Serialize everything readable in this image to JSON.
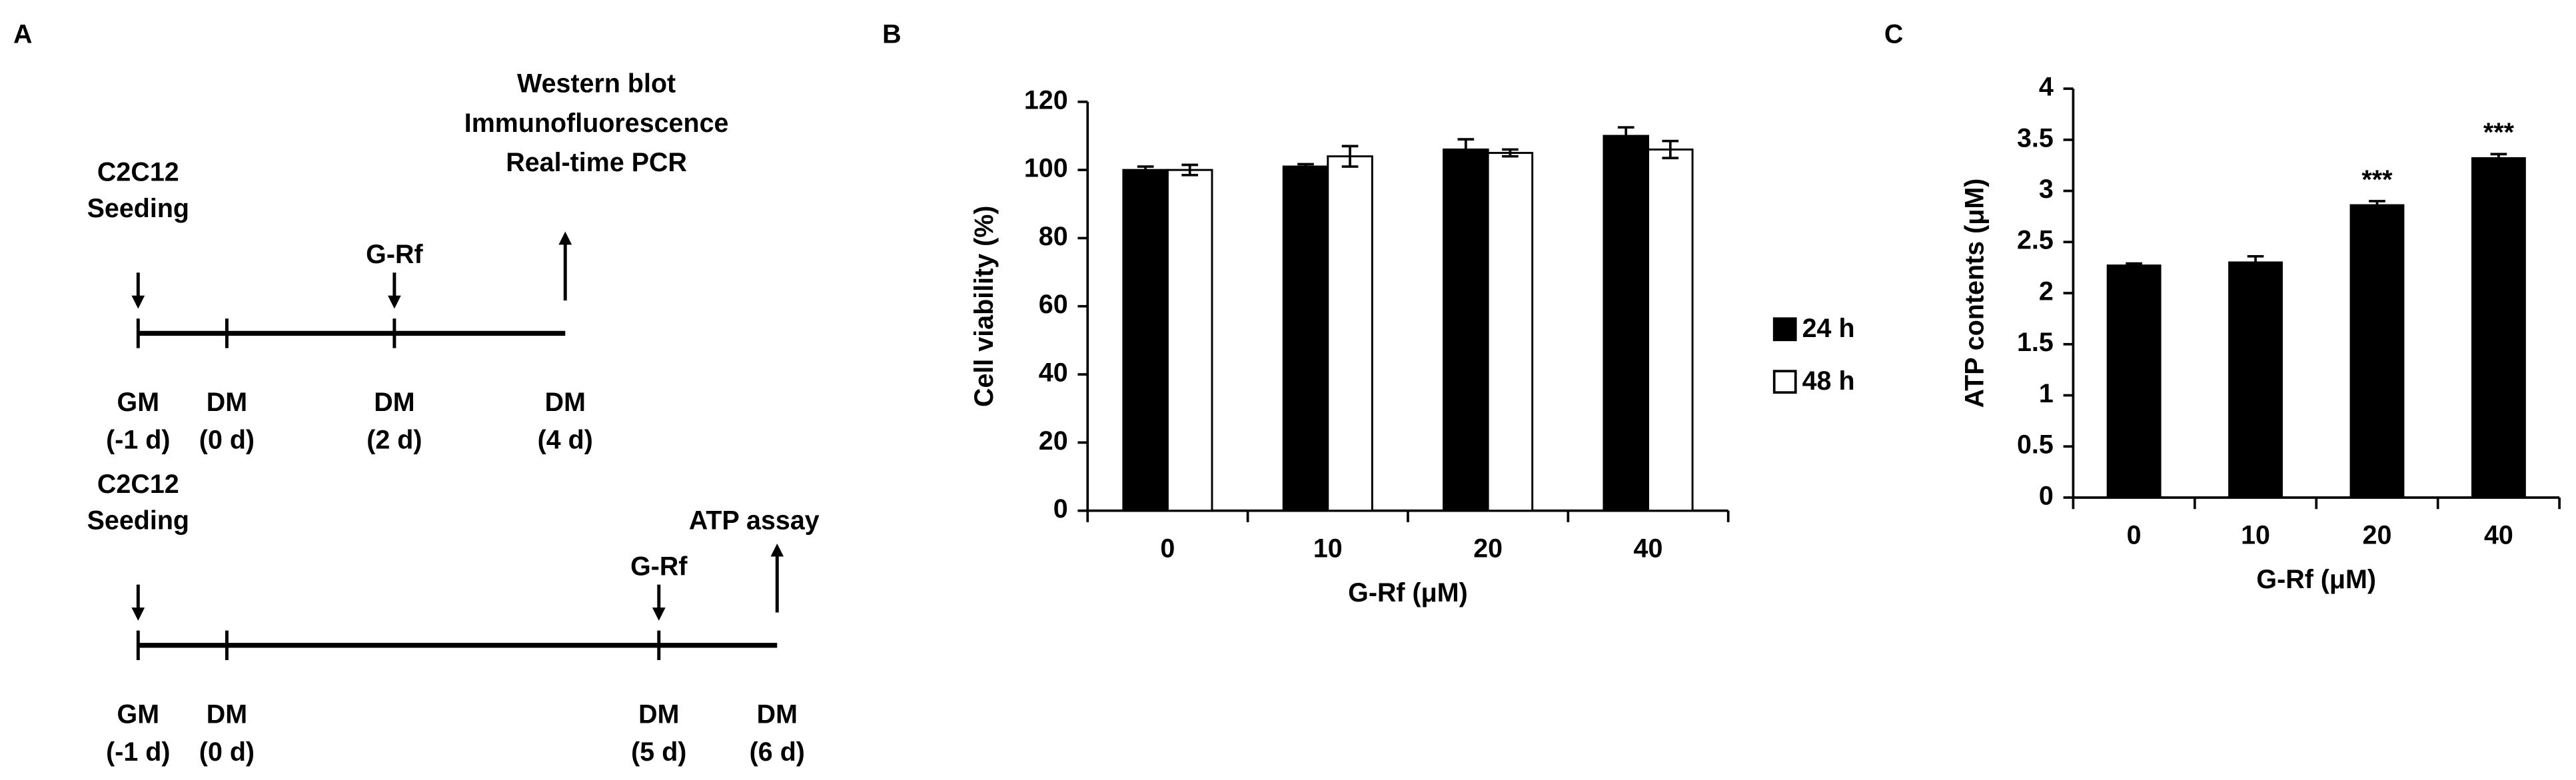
{
  "panel_labels": [
    "A",
    "B",
    "C"
  ],
  "diagram": {
    "timelines": [
      {
        "points": [
          {
            "stage": "GM",
            "day": "(-1 d)",
            "event": [
              "C2C12",
              "Seeding"
            ]
          },
          {
            "stage": "DM",
            "day": "(0 d)"
          },
          {
            "stage": "DM",
            "day": "(2 d)",
            "event": [
              "G-Rf"
            ]
          },
          {
            "stage": "DM",
            "day": "(4 d)",
            "endpoint": [
              "Western blot",
              "Immunofluorescence",
              "Real-time PCR"
            ]
          }
        ]
      },
      {
        "points": [
          {
            "stage": "GM",
            "day": "(-1 d)",
            "event": [
              "C2C12",
              "Seeding"
            ]
          },
          {
            "stage": "DM",
            "day": "(0 d)"
          },
          {
            "stage": "DM",
            "day": "(5 d)",
            "event": [
              "G-Rf"
            ]
          },
          {
            "stage": "DM",
            "day": "(6 d)",
            "endpoint": [
              "ATP assay"
            ]
          }
        ]
      }
    ]
  },
  "chart_data": [
    {
      "type": "bar",
      "ylabel": "Cell viability (%)",
      "xlabel": "G-Rf (μM)",
      "categories": [
        "0",
        "10",
        "20",
        "40"
      ],
      "series": [
        {
          "name": "24 h",
          "color": "#000000",
          "values": [
            100,
            101,
            106,
            110
          ],
          "errors": [
            1,
            0.7,
            3,
            2.5
          ]
        },
        {
          "name": "48 h",
          "color": "#ffffff",
          "values": [
            100,
            104,
            105,
            106
          ],
          "errors": [
            1.5,
            3,
            1,
            2.5
          ]
        }
      ],
      "ylim": [
        0,
        120
      ],
      "yticks": [
        0,
        20,
        40,
        60,
        80,
        100,
        120
      ],
      "legend": "right"
    },
    {
      "type": "bar",
      "ylabel": "ATP contents (μM)",
      "xlabel": "G-Rf (μM)",
      "categories": [
        "0",
        "10",
        "20",
        "40"
      ],
      "series": [
        {
          "name": "24 h",
          "color": "#000000",
          "values": [
            2.27,
            2.3,
            2.86,
            3.32
          ],
          "errors": [
            0.02,
            0.06,
            0.04,
            0.04
          ],
          "significance": [
            null,
            null,
            "***",
            "***"
          ]
        }
      ],
      "ylim": [
        0,
        4
      ],
      "yticks": [
        0,
        0.5,
        1,
        1.5,
        2,
        2.5,
        3,
        3.5,
        4
      ]
    }
  ]
}
